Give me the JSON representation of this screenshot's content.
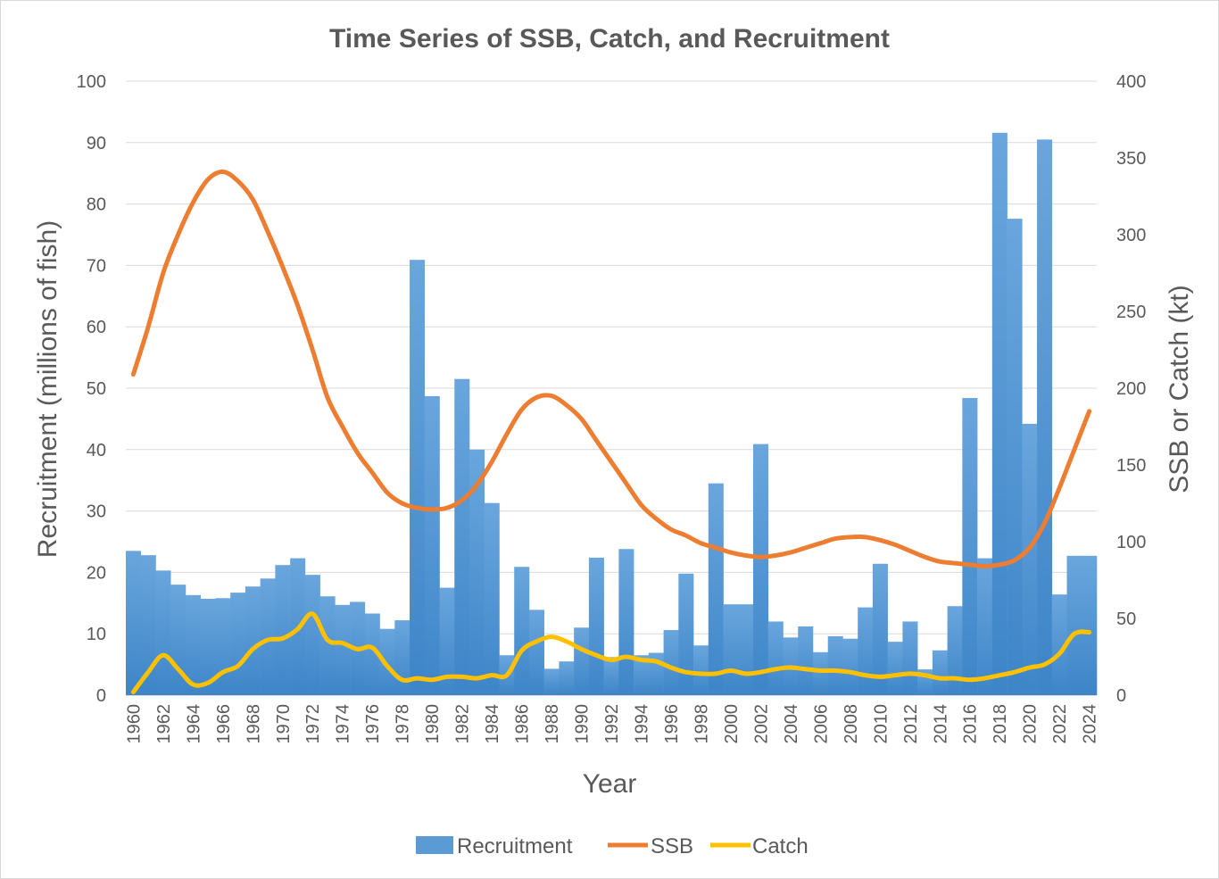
{
  "chart_data": {
    "type": "bar+line",
    "title": "Time Series of SSB, Catch, and Recruitment",
    "xlabel": "Year",
    "ylabel_left": "Recruitment (millions of fish)",
    "ylabel_right": "SSB or Catch (kt)",
    "ylim_left": [
      0,
      100
    ],
    "ylim_right": [
      0,
      400
    ],
    "yticks_left": [
      "0",
      "10",
      "20",
      "30",
      "40",
      "50",
      "60",
      "70",
      "80",
      "90",
      "100"
    ],
    "yticks_right": [
      "0",
      "50",
      "100",
      "150",
      "200",
      "250",
      "300",
      "350",
      "400"
    ],
    "grid": true,
    "legend_position": "bottom",
    "years": [
      1960,
      1961,
      1962,
      1963,
      1964,
      1965,
      1966,
      1967,
      1968,
      1969,
      1970,
      1971,
      1972,
      1973,
      1974,
      1975,
      1976,
      1977,
      1978,
      1979,
      1980,
      1981,
      1982,
      1983,
      1984,
      1985,
      1986,
      1987,
      1988,
      1989,
      1990,
      1991,
      1992,
      1993,
      1994,
      1995,
      1996,
      1997,
      1998,
      1999,
      2000,
      2001,
      2002,
      2003,
      2004,
      2005,
      2006,
      2007,
      2008,
      2009,
      2010,
      2011,
      2012,
      2013,
      2014,
      2015,
      2016,
      2017,
      2018,
      2019,
      2020,
      2021,
      2022,
      2023,
      2024
    ],
    "series": [
      {
        "name": "Recruitment",
        "type": "bar",
        "axis": "left",
        "color": "#5b9bd5",
        "values": [
          23.5,
          22.8,
          20.3,
          18.0,
          16.3,
          15.7,
          15.8,
          16.7,
          17.7,
          19.0,
          21.2,
          22.3,
          19.6,
          16.1,
          14.7,
          15.2,
          13.3,
          10.8,
          12.2,
          70.9,
          48.7,
          17.5,
          51.5,
          40.0,
          31.3,
          6.5,
          20.9,
          13.9,
          4.3,
          5.5,
          11.0,
          22.4,
          6.2,
          23.8,
          6.5,
          6.9,
          10.6,
          19.8,
          8.1,
          34.5,
          14.8,
          14.8,
          40.9,
          12.0,
          9.4,
          11.2,
          7.0,
          9.6,
          9.2,
          14.3,
          21.4,
          8.7,
          12.0,
          4.2,
          7.3,
          14.5,
          48.4,
          22.3,
          91.6,
          77.6,
          44.2,
          90.5,
          16.4,
          22.7,
          22.7
        ]
      },
      {
        "name": "SSB",
        "type": "line",
        "axis": "right",
        "color": "#ed7d31",
        "values": [
          209,
          240,
          275,
          300,
          321,
          336,
          341,
          335,
          323,
          302,
          279,
          254,
          225,
          194,
          175,
          158,
          145,
          132,
          125,
          122,
          121,
          122,
          127,
          137,
          152,
          170,
          186,
          194,
          195,
          189,
          180,
          166,
          152,
          138,
          124,
          115,
          108,
          104,
          99,
          96,
          93,
          91,
          90,
          91,
          93,
          96,
          99,
          102,
          103,
          103,
          101,
          98,
          94,
          90,
          87,
          86,
          85,
          84,
          85,
          88,
          96,
          112,
          135,
          160,
          185
        ]
      },
      {
        "name": "Catch",
        "type": "line",
        "axis": "right",
        "color": "#ffc000",
        "values": [
          2,
          15,
          26,
          17,
          7,
          8,
          15,
          19,
          30,
          36,
          37,
          43,
          53,
          36,
          34,
          30,
          31,
          19,
          10,
          11,
          10,
          12,
          12,
          11,
          13,
          13,
          29,
          35,
          38,
          35,
          30,
          26,
          23,
          25,
          23,
          22,
          18,
          15,
          14,
          14,
          16,
          14,
          15,
          17,
          18,
          17,
          16,
          16,
          15,
          13,
          12,
          13,
          14,
          13,
          11,
          11,
          10,
          11,
          13,
          15,
          18,
          20,
          27,
          40,
          41
        ]
      }
    ]
  }
}
